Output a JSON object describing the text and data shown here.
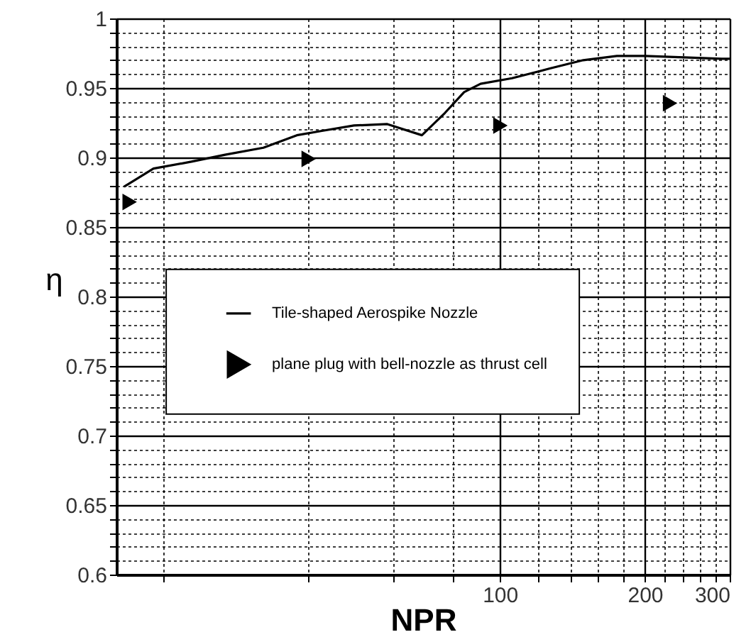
{
  "chart_data": {
    "type": "line",
    "xlabel": "NPR",
    "ylabel": "η",
    "log": "x",
    "grid": true,
    "legend": "center",
    "xlim": [
      16,
      300
    ],
    "ylim": [
      0.6,
      1
    ],
    "xticks": [
      {
        "value": 20,
        "label": null
      },
      {
        "value": 40,
        "label": null
      },
      {
        "value": 60,
        "label": null
      },
      {
        "value": 80,
        "label": null
      },
      100,
      {
        "value": 120,
        "label": null
      },
      {
        "value": 140,
        "label": null
      },
      {
        "value": 160,
        "label": null
      },
      {
        "value": 180,
        "label": null
      },
      200,
      {
        "value": 220,
        "label": null
      },
      {
        "value": 240,
        "label": null
      },
      {
        "value": 260,
        "label": null
      },
      {
        "value": 280,
        "label": null
      },
      300
    ],
    "yticks": [
      0.6,
      {
        "value": 0.61,
        "label": null
      },
      {
        "value": 0.62,
        "label": null
      },
      {
        "value": 0.63,
        "label": null
      },
      {
        "value": 0.64,
        "label": null
      },
      0.65,
      {
        "value": 0.66,
        "label": null
      },
      {
        "value": 0.67,
        "label": null
      },
      {
        "value": 0.68,
        "label": null
      },
      {
        "value": 0.69,
        "label": null
      },
      0.7,
      {
        "value": 0.71,
        "label": null
      },
      {
        "value": 0.72,
        "label": null
      },
      {
        "value": 0.73,
        "label": null
      },
      {
        "value": 0.74,
        "label": null
      },
      0.75,
      {
        "value": 0.76,
        "label": null
      },
      {
        "value": 0.77,
        "label": null
      },
      {
        "value": 0.78,
        "label": null
      },
      {
        "value": 0.79,
        "label": null
      },
      0.8,
      {
        "value": 0.81,
        "label": null
      },
      {
        "value": 0.82,
        "label": null
      },
      {
        "value": 0.83,
        "label": null
      },
      {
        "value": 0.84,
        "label": null
      },
      0.85,
      {
        "value": 0.86,
        "label": null
      },
      {
        "value": 0.87,
        "label": null
      },
      {
        "value": 0.88,
        "label": null
      },
      {
        "value": 0.89,
        "label": null
      },
      0.9,
      {
        "value": 0.91,
        "label": null
      },
      {
        "value": 0.92,
        "label": null
      },
      {
        "value": 0.93,
        "label": null
      },
      {
        "value": 0.94,
        "label": null
      },
      0.95,
      {
        "value": 0.96,
        "label": null
      },
      {
        "value": 0.97,
        "label": null
      },
      {
        "value": 0.98,
        "label": null
      },
      {
        "value": 0.99,
        "label": null
      },
      1
    ],
    "series": [
      {
        "name": "Tile-shaped Aerospike Nozzle",
        "color": "#000000",
        "line_style": "solid",
        "x": [
          16.6,
          19.1,
          22.9,
          26.9,
          32.3,
          37.9,
          42.5,
          49.8,
          58.4,
          68.9,
          76.9,
          84.3,
          91.2,
          106,
          127,
          149,
          175,
          200,
          241,
          289,
          300
        ],
        "values": [
          0.879,
          0.892,
          0.897,
          0.902,
          0.907,
          0.916,
          0.919,
          0.923,
          0.924,
          0.916,
          0.932,
          0.947,
          0.953,
          0.957,
          0.964,
          0.97,
          0.973,
          0.973,
          0.972,
          0.971,
          0.971
        ]
      },
      {
        "name": "plane plug with bell-nozzle as thrust cell",
        "type": "scatter",
        "color": "#000000",
        "marker": "triangle",
        "x": [
          17,
          40,
          100,
          225
        ],
        "values": [
          0.868,
          0.899,
          0.923,
          0.939
        ]
      }
    ]
  }
}
